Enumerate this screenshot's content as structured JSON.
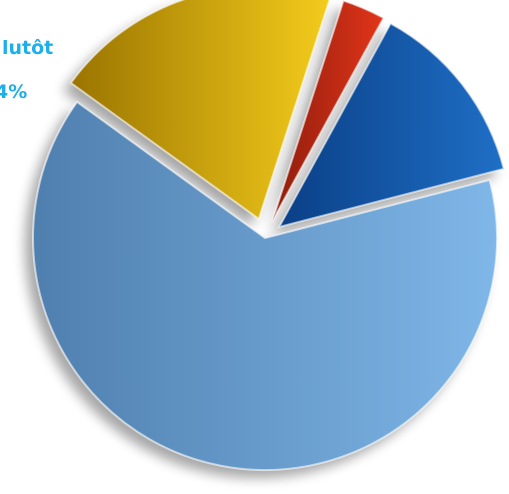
{
  "chart_data": {
    "type": "pie",
    "style": "exploded, gradient shaded slices with shadow",
    "slices": [
      {
        "color": "#7fb7e8",
        "dark": "#4f7fae",
        "value": 64
      },
      {
        "color": "#f4cc1c",
        "dark": "#9a7400",
        "value": 20
      },
      {
        "color": "#e2351a",
        "dark": "#8e1c0c",
        "value": 3
      },
      {
        "color": "#1f6fc6",
        "dark": "#0a3f86",
        "value": 13
      }
    ],
    "labels": [
      {
        "line1": "lutôt",
        "line2": "4%",
        "color": "#1eaeea"
      }
    ]
  }
}
